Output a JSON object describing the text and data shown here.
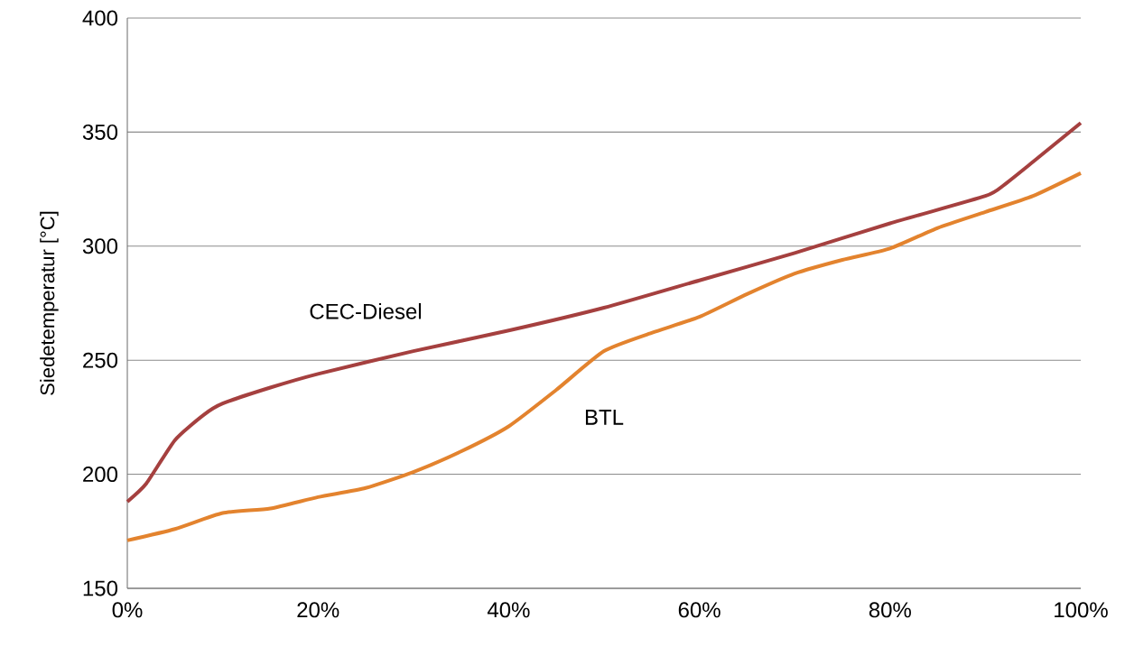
{
  "chart_data": {
    "type": "line",
    "ylabel": "Siedetemperatur [°C]",
    "xlim": [
      0,
      100
    ],
    "ylim": [
      150,
      400
    ],
    "xticks": [
      {
        "value": 0,
        "label": "0%"
      },
      {
        "value": 20,
        "label": "20%"
      },
      {
        "value": 40,
        "label": "40%"
      },
      {
        "value": 60,
        "label": "60%"
      },
      {
        "value": 80,
        "label": "80%"
      },
      {
        "value": 100,
        "label": "100%"
      }
    ],
    "yticks": [
      150,
      200,
      250,
      300,
      350,
      400
    ],
    "grid": "y",
    "legend": false,
    "marker": "none",
    "line_style": "solid",
    "series": [
      {
        "name": "CEC-Diesel",
        "color": "#a5403f",
        "x": [
          0,
          2,
          5,
          8,
          10,
          15,
          20,
          30,
          40,
          50,
          60,
          70,
          80,
          90,
          92,
          95,
          100
        ],
        "values": [
          188,
          196,
          215,
          226,
          231,
          238,
          244,
          254,
          263,
          273,
          285,
          297,
          310,
          322,
          327,
          337,
          354
        ]
      },
      {
        "name": "BTL",
        "color": "#e3832e",
        "x": [
          0,
          5,
          10,
          15,
          20,
          25,
          30,
          35,
          40,
          45,
          50,
          55,
          60,
          65,
          70,
          75,
          80,
          85,
          90,
          95,
          100
        ],
        "values": [
          171,
          176,
          183,
          185,
          190,
          194,
          201,
          210,
          221,
          237,
          254,
          262,
          269,
          279,
          288,
          294,
          299,
          308,
          315,
          322,
          332
        ]
      }
    ]
  }
}
